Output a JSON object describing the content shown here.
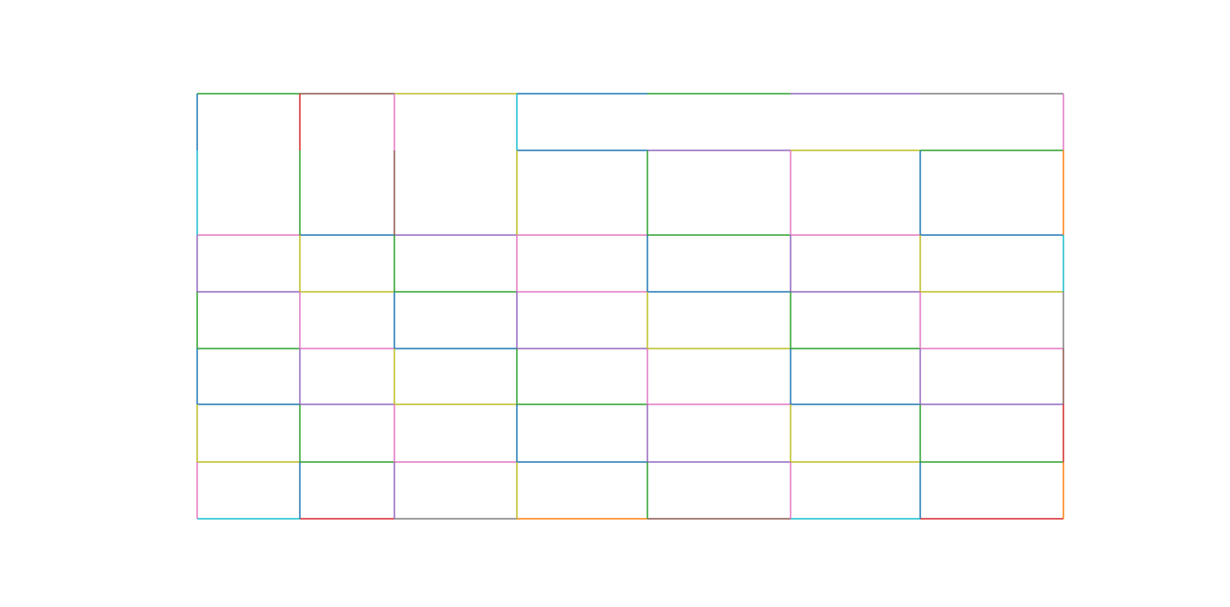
{
  "palette": {
    "blue": "#1f77b4",
    "orange": "#ff7f0e",
    "green": "#2ca02c",
    "red": "#d62728",
    "purple": "#9467bd",
    "brown": "#8c564b",
    "pink": "#e377c2",
    "gray": "#7f7f7f",
    "olive": "#bcbd22",
    "cyan": "#17becf"
  },
  "table_grid": {
    "rows": 7,
    "columns": 7,
    "merged_cells": [
      {
        "row": 0,
        "col": 0,
        "rowspan": 2,
        "colspan": 1
      },
      {
        "row": 0,
        "col": 1,
        "rowspan": 2,
        "colspan": 1
      },
      {
        "row": 0,
        "col": 2,
        "rowspan": 2,
        "colspan": 1
      },
      {
        "row": 0,
        "col": 3,
        "rowspan": 1,
        "colspan": 4
      }
    ],
    "horizontal_edge_colors": [
      [
        "green",
        "brown",
        "olive",
        "blue",
        "green",
        "purple",
        "gray"
      ],
      [
        null,
        null,
        null,
        "blue",
        "purple",
        "olive",
        "green"
      ],
      [
        "pink",
        "blue",
        "purple",
        "pink",
        "green",
        "pink",
        "blue"
      ],
      [
        "purple",
        "olive",
        "green",
        "pink",
        "blue",
        "purple",
        "olive"
      ],
      [
        "green",
        "pink",
        "blue",
        "purple",
        "olive",
        "green",
        "pink"
      ],
      [
        "blue",
        "purple",
        "olive",
        "green",
        "pink",
        "blue",
        "purple"
      ],
      [
        "olive",
        "green",
        "pink",
        "blue",
        "purple",
        "olive",
        "green"
      ],
      [
        "cyan",
        "red",
        "gray",
        "orange",
        "brown",
        "cyan",
        "red"
      ]
    ],
    "vertical_edge_colors": [
      [
        "blue",
        "cyan",
        "purple",
        "green",
        "blue",
        "olive",
        "pink"
      ],
      [
        "red",
        "green",
        "olive",
        "pink",
        "purple",
        "green",
        "blue"
      ],
      [
        "pink",
        "brown",
        "green",
        "blue",
        "olive",
        "pink",
        "purple"
      ],
      [
        "cyan",
        "olive",
        "pink",
        "purple",
        "green",
        "blue",
        "olive"
      ],
      [
        null,
        "green",
        "blue",
        "olive",
        "pink",
        "purple",
        "green"
      ],
      [
        null,
        "pink",
        "purple",
        "green",
        "blue",
        "olive",
        "pink"
      ],
      [
        null,
        "blue",
        "olive",
        "pink",
        "purple",
        "green",
        "blue"
      ],
      [
        "pink",
        "orange",
        "cyan",
        "gray",
        "brown",
        "red",
        "orange"
      ]
    ]
  }
}
